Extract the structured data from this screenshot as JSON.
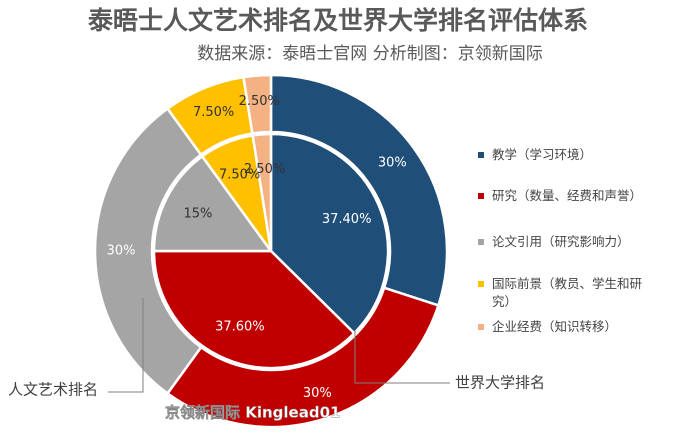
{
  "chart_data": {
    "type": "nested-donut",
    "title": "泰晤士人文艺术排名及世界大学排名评估体系",
    "subtitle": "数据来源：泰晤士官网  分析制图：京领新国际",
    "watermark": "京领新国际 Kinglead01",
    "categories": [
      "教学（学习环境）",
      "研究（数量、经费和声誉）",
      "论文引用（研究影响力）",
      "国际前景（教员、学生和研究）",
      "企业经费（知识转移）"
    ],
    "colors": [
      "#1f4e79",
      "#c00000",
      "#a5a5a5",
      "#ffc000",
      "#f4b183"
    ],
    "series": [
      {
        "name": "人文艺术排名",
        "values": [
          30,
          30,
          30,
          7.5,
          2.5
        ],
        "value_labels": [
          "30%",
          "30%",
          "30%",
          "7.50%",
          "2.50%"
        ]
      },
      {
        "name": "世界大学排名",
        "values": [
          37.4,
          37.6,
          15,
          7.5,
          2.5
        ],
        "value_labels": [
          "37.40%",
          "37.60%",
          "15%",
          "7.50%",
          "2.50%"
        ]
      }
    ],
    "legend": "right"
  }
}
